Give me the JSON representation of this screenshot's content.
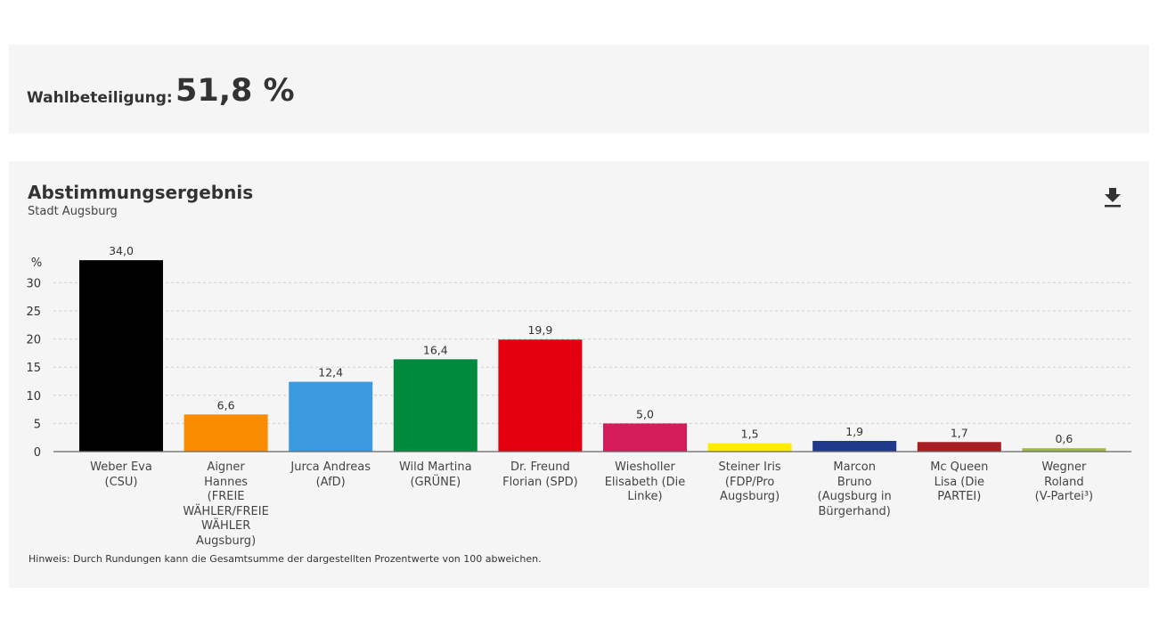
{
  "turnout": {
    "label": "Wahlbeteiligung:",
    "value": "51,8 %"
  },
  "chart_card": {
    "title": "Abstimmungsergebnis",
    "subtitle": "Stadt Augsburg",
    "download_icon": "download-icon",
    "footnote": "Hinweis: Durch Rundungen kann die Gesamtsumme der dargestellten Prozentwerte von 100 abweichen."
  },
  "chart_data": {
    "type": "bar",
    "title": "Abstimmungsergebnis",
    "subtitle": "Stadt Augsburg",
    "xlabel": "",
    "ylabel": "%",
    "ylim": [
      0,
      34
    ],
    "yticks": [
      0,
      5,
      10,
      15,
      20,
      25,
      30
    ],
    "ytick_labels": [
      "0",
      "5",
      "10",
      "15",
      "20",
      "25",
      "30"
    ],
    "grid": true,
    "categories": [
      "Weber Eva (CSU)",
      "Aigner Hannes (FREIE WÄHLER/FREIE WÄHLER Augsburg)",
      "Jurca Andreas (AfD)",
      "Wild Martina (GRÜNE)",
      "Dr. Freund Florian (SPD)",
      "Wiesholler Elisabeth (Die Linke)",
      "Steiner Iris (FDP/Pro Augsburg)",
      "Marcon Bruno (Augsburg in Bürgerhand)",
      "Mc Queen Lisa (Die PARTEI)",
      "Wegner Roland (V-Partei³)"
    ],
    "category_lines": [
      [
        "Weber Eva",
        "(CSU)"
      ],
      [
        "Aigner",
        "Hannes",
        "(FREIE",
        "WÄHLER/FREIE",
        "WÄHLER",
        "Augsburg)"
      ],
      [
        "Jurca Andreas",
        "(AfD)"
      ],
      [
        "Wild Martina",
        "(GRÜNE)"
      ],
      [
        "Dr. Freund",
        "Florian (SPD)"
      ],
      [
        "Wiesholler",
        "Elisabeth (Die",
        "Linke)"
      ],
      [
        "Steiner Iris",
        "(FDP/Pro",
        "Augsburg)"
      ],
      [
        "Marcon",
        "Bruno",
        "(Augsburg in",
        "Bürgerhand)"
      ],
      [
        "Mc Queen",
        "Lisa (Die",
        "PARTEI)"
      ],
      [
        "Wegner",
        "Roland",
        "(V-Partei³)"
      ]
    ],
    "values": [
      34.0,
      6.6,
      12.4,
      16.4,
      19.9,
      5.0,
      1.5,
      1.9,
      1.7,
      0.6
    ],
    "value_labels": [
      "34,0",
      "6,6",
      "12,4",
      "16,4",
      "19,9",
      "5,0",
      "1,5",
      "1,9",
      "1,7",
      "0,6"
    ],
    "colors": [
      "#000000",
      "#fa8c00",
      "#3b9ae0",
      "#008a3e",
      "#e3000f",
      "#d41c5a",
      "#ffed00",
      "#1f3a8a",
      "#a71e22",
      "#a0b84a"
    ]
  }
}
